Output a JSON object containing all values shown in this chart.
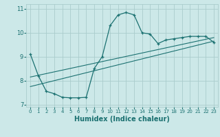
{
  "title": "",
  "xlabel": "Humidex (Indice chaleur)",
  "xlim": [
    -0.5,
    23.5
  ],
  "ylim": [
    6.9,
    11.2
  ],
  "yticks": [
    7,
    8,
    9,
    10,
    11
  ],
  "xticks": [
    0,
    1,
    2,
    3,
    4,
    5,
    6,
    7,
    8,
    9,
    10,
    11,
    12,
    13,
    14,
    15,
    16,
    17,
    18,
    19,
    20,
    21,
    22,
    23
  ],
  "bg_color": "#cce8e8",
  "line_color": "#1a7070",
  "grid_color": "#aacccc",
  "curve1_x": [
    0,
    1,
    2,
    3,
    4,
    5,
    6,
    7,
    8,
    9,
    10,
    11,
    12,
    13,
    14,
    15,
    16,
    17,
    18,
    19,
    20,
    21,
    22,
    23
  ],
  "curve1_y": [
    9.1,
    8.2,
    7.55,
    7.45,
    7.3,
    7.28,
    7.28,
    7.3,
    8.5,
    9.0,
    10.3,
    10.75,
    10.85,
    10.75,
    10.0,
    9.95,
    9.55,
    9.7,
    9.75,
    9.8,
    9.85,
    9.85,
    9.85,
    9.6
  ],
  "line1_x": [
    0,
    23
  ],
  "line1_y": [
    8.15,
    9.8
  ],
  "line2_x": [
    0,
    23
  ],
  "line2_y": [
    7.75,
    9.65
  ]
}
